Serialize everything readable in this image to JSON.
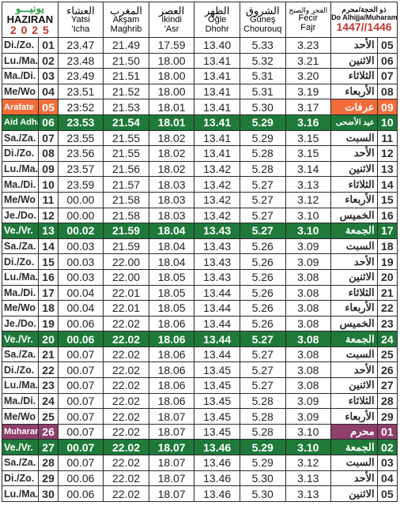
{
  "header": {
    "month_ar": "يونيـــو",
    "month": "HAZIRAN",
    "year": "2 0 2 5",
    "cols": [
      {
        "ar": "العشاء",
        "lat1": "Yatsi",
        "lat2": "'Icha"
      },
      {
        "ar": "المغرب",
        "lat1": "Akşam",
        "lat2": "Maghrib"
      },
      {
        "ar": "العصر",
        "lat1": "İkindi",
        "lat2": "'Asr"
      },
      {
        "ar": "الظهر",
        "lat1": "Öğle",
        "lat2": "Dhohr"
      },
      {
        "ar": "الشروق",
        "lat1": "Güneş",
        "lat2": "Chourouq"
      },
      {
        "ar": "الفجر والصبح",
        "lat1": "Fecir",
        "lat2": "Fajr"
      }
    ],
    "hijri_title": "ذو الحجة/محرم",
    "hijri_sub": "Do Alhijja/Muharam",
    "hijri_year": "1447//1446"
  },
  "colors": {
    "green": "#1f7a3a",
    "orange": "#f26c3a",
    "purple": "#8e3f6a",
    "year_red": "#c0392b",
    "month_green": "#2e9a46"
  },
  "rows": [
    {
      "day": "Di./Zo.",
      "n": "01",
      "isha": "23.47",
      "maghrib": "21.49",
      "asr": "17.59",
      "dhohr": "13.40",
      "chourouq": "5.33",
      "fajr": "3.23",
      "ar": "الأحد",
      "hn": "05",
      "style": ""
    },
    {
      "day": "Lu./Ma.",
      "n": "02",
      "isha": "23.48",
      "maghrib": "21.50",
      "asr": "18.00",
      "dhohr": "13.41",
      "chourouq": "5.32",
      "fajr": "3.21",
      "ar": "الاثنين",
      "hn": "06",
      "style": ""
    },
    {
      "day": "Ma./Di.",
      "n": "03",
      "isha": "23.49",
      "maghrib": "21.51",
      "asr": "18.00",
      "dhohr": "13.41",
      "chourouq": "5.31",
      "fajr": "3.20",
      "ar": "الثلاثاء",
      "hn": "07",
      "style": ""
    },
    {
      "day": "Me/Wo",
      "n": "04",
      "isha": "23.51",
      "maghrib": "21.52",
      "asr": "18.00",
      "dhohr": "13.41",
      "chourouq": "5.31",
      "fajr": "3.19",
      "ar": "الأربعاء",
      "hn": "08",
      "style": ""
    },
    {
      "day": "Arafate",
      "n": "05",
      "isha": "23:52",
      "maghrib": "21.53",
      "asr": "18.01",
      "dhohr": "13.41",
      "chourouq": "5.30",
      "fajr": "3.17",
      "ar": "عرفات",
      "hn": "09",
      "style": "orange"
    },
    {
      "day": "Aid Adha",
      "n": "06",
      "isha": "23.53",
      "maghrib": "21.54",
      "asr": "18.01",
      "dhohr": "13.41",
      "chourouq": "5.29",
      "fajr": "3.16",
      "ar": "عيد الأضحى",
      "hn": "10",
      "style": "green"
    },
    {
      "day": "Sa./Za.",
      "n": "07",
      "isha": "23.55",
      "maghrib": "21.55",
      "asr": "18.02",
      "dhohr": "13.41",
      "chourouq": "5.29",
      "fajr": "3.15",
      "ar": "السبت",
      "hn": "11",
      "style": ""
    },
    {
      "day": "Di./Zo.",
      "n": "08",
      "isha": "23.56",
      "maghrib": "21.55",
      "asr": "18.02",
      "dhohr": "13.41",
      "chourouq": "5.28",
      "fajr": "3.15",
      "ar": "الأحد",
      "hn": "12",
      "style": ""
    },
    {
      "day": "Lu./Ma.",
      "n": "09",
      "isha": "23.57",
      "maghrib": "21.56",
      "asr": "18.02",
      "dhohr": "13.42",
      "chourouq": "5.28",
      "fajr": "3.14",
      "ar": "الاثنين",
      "hn": "13",
      "style": ""
    },
    {
      "day": "Ma./Di.",
      "n": "10",
      "isha": "23.59",
      "maghrib": "21.57",
      "asr": "18.03",
      "dhohr": "13.42",
      "chourouq": "5.27",
      "fajr": "3.13",
      "ar": "الثلاثاء",
      "hn": "14",
      "style": ""
    },
    {
      "day": "Me/Wo",
      "n": "11",
      "isha": "00.00",
      "maghrib": "21.58",
      "asr": "18.03",
      "dhohr": "13.42",
      "chourouq": "5.27",
      "fajr": "3.12",
      "ar": "الأربعاء",
      "hn": "15",
      "style": ""
    },
    {
      "day": "Je./Do.",
      "n": "12",
      "isha": "00.00",
      "maghrib": "21.58",
      "asr": "18.03",
      "dhohr": "13.42",
      "chourouq": "5.27",
      "fajr": "3.10",
      "ar": "الخميس",
      "hn": "16",
      "style": ""
    },
    {
      "day": "Ve./Vr.",
      "n": "13",
      "isha": "00.02",
      "maghrib": "21.59",
      "asr": "18.04",
      "dhohr": "13.43",
      "chourouq": "5.27",
      "fajr": "3.10",
      "ar": "الجمعة",
      "hn": "17",
      "style": "green"
    },
    {
      "day": "Sa./Za.",
      "n": "14",
      "isha": "00.03",
      "maghrib": "21.59",
      "asr": "18.04",
      "dhohr": "13.43",
      "chourouq": "5.26",
      "fajr": "3.09",
      "ar": "السبت",
      "hn": "18",
      "style": ""
    },
    {
      "day": "Di./Zo.",
      "n": "15",
      "isha": "00.03",
      "maghrib": "22.00",
      "asr": "18.04",
      "dhohr": "13.43",
      "chourouq": "5.26",
      "fajr": "3.09",
      "ar": "الأحد",
      "hn": "19",
      "style": ""
    },
    {
      "day": "Lu./Ma.",
      "n": "16",
      "isha": "00.03",
      "maghrib": "22.00",
      "asr": "18.05",
      "dhohr": "13.43",
      "chourouq": "5.26",
      "fajr": "3.08",
      "ar": "الاثنين",
      "hn": "20",
      "style": ""
    },
    {
      "day": "Ma./Di.",
      "n": "17",
      "isha": "00.04",
      "maghrib": "22.01",
      "asr": "18.05",
      "dhohr": "13.44",
      "chourouq": "5.26",
      "fajr": "3.08",
      "ar": "الثلاثاء",
      "hn": "21",
      "style": ""
    },
    {
      "day": "Me/Wo",
      "n": "18",
      "isha": "00.04",
      "maghrib": "22.01",
      "asr": "18.05",
      "dhohr": "13.44",
      "chourouq": "5.26",
      "fajr": "3.08",
      "ar": "الأربعاء",
      "hn": "22",
      "style": ""
    },
    {
      "day": "Je./Do.",
      "n": "19",
      "isha": "00.06",
      "maghrib": "22.02",
      "asr": "18.06",
      "dhohr": "13.44",
      "chourouq": "5.26",
      "fajr": "3.08",
      "ar": "الخميس",
      "hn": "23",
      "style": ""
    },
    {
      "day": "Ve./Vr.",
      "n": "20",
      "isha": "00.06",
      "maghrib": "22.02",
      "asr": "18.06",
      "dhohr": "13.44",
      "chourouq": "5.27",
      "fajr": "3.08",
      "ar": "الجمعة",
      "hn": "24",
      "style": "green"
    },
    {
      "day": "Sa./Za.",
      "n": "21",
      "isha": "00.07",
      "maghrib": "22.02",
      "asr": "18.06",
      "dhohr": "13.44",
      "chourouq": "5.27",
      "fajr": "3.08",
      "ar": "السبت",
      "hn": "25",
      "style": ""
    },
    {
      "day": "Di./Zo.",
      "n": "22",
      "isha": "00.07",
      "maghrib": "22.02",
      "asr": "18.06",
      "dhohr": "13.45",
      "chourouq": "5.27",
      "fajr": "3.08",
      "ar": "الأحد",
      "hn": "26",
      "style": ""
    },
    {
      "day": "Lu./Ma.",
      "n": "23",
      "isha": "00.07",
      "maghrib": "22.02",
      "asr": "18.06",
      "dhohr": "13.45",
      "chourouq": "5.27",
      "fajr": "3.08",
      "ar": "الاثنين",
      "hn": "27",
      "style": ""
    },
    {
      "day": "Ma./Di.",
      "n": "24",
      "isha": "00.07",
      "maghrib": "22.02",
      "asr": "18.06",
      "dhohr": "13.45",
      "chourouq": "5.28",
      "fajr": "3.09",
      "ar": "الثلاثاء",
      "hn": "28",
      "style": ""
    },
    {
      "day": "Me/Wo",
      "n": "25",
      "isha": "00.07",
      "maghrib": "22.02",
      "asr": "18.07",
      "dhohr": "13.45",
      "chourouq": "5.28",
      "fajr": "3.09",
      "ar": "الأربعاء",
      "hn": "29",
      "style": ""
    },
    {
      "day": "Muharam",
      "n": "26",
      "isha": "00.07",
      "maghrib": "22.02",
      "asr": "18.07",
      "dhohr": "13.45",
      "chourouq": "5.28",
      "fajr": "3.10",
      "ar": "محرم",
      "hn": "01",
      "style": "purple"
    },
    {
      "day": "Ve./Vr.",
      "n": "27",
      "isha": "00.07",
      "maghrib": "22.02",
      "asr": "18.07",
      "dhohr": "13.46",
      "chourouq": "5.29",
      "fajr": "3.10",
      "ar": "الجمعة",
      "hn": "02",
      "style": "green"
    },
    {
      "day": "Sa./Za.",
      "n": "28",
      "isha": "00.07",
      "maghrib": "22.02",
      "asr": "18.07",
      "dhohr": "13.46",
      "chourouq": "5.29",
      "fajr": "3.12",
      "ar": "السبت",
      "hn": "03",
      "style": ""
    },
    {
      "day": "Di./Zo.",
      "n": "29",
      "isha": "00.06",
      "maghrib": "22.02",
      "asr": "18.07",
      "dhohr": "13.46",
      "chourouq": "5.30",
      "fajr": "3.13",
      "ar": "الأحد",
      "hn": "04",
      "style": ""
    },
    {
      "day": "Lu./Ma.",
      "n": "30",
      "isha": "00.06",
      "maghrib": "22.02",
      "asr": "18.07",
      "dhohr": "13.46",
      "chourouq": "5.30",
      "fajr": "3.13",
      "ar": "الاثنين",
      "hn": "05",
      "style": ""
    }
  ]
}
